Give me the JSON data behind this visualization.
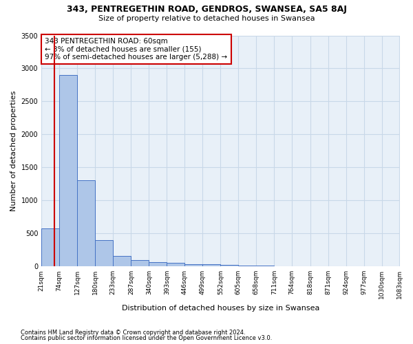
{
  "title1": "343, PENTREGETHIN ROAD, GENDROS, SWANSEA, SA5 8AJ",
  "title2": "Size of property relative to detached houses in Swansea",
  "xlabel": "Distribution of detached houses by size in Swansea",
  "ylabel": "Number of detached properties",
  "footer1": "Contains HM Land Registry data © Crown copyright and database right 2024.",
  "footer2": "Contains public sector information licensed under the Open Government Licence v3.0.",
  "annotation_line1": "343 PENTREGETHIN ROAD: 60sqm",
  "annotation_line2": "← 3% of detached houses are smaller (155)",
  "annotation_line3": "97% of semi-detached houses are larger (5,288) →",
  "bar_edges": [
    21,
    74,
    127,
    180,
    233,
    287,
    340,
    393,
    446,
    499,
    552,
    605,
    658,
    711,
    764,
    818,
    871,
    924,
    977,
    1030,
    1083
  ],
  "bar_heights": [
    575,
    2900,
    1305,
    400,
    155,
    95,
    60,
    50,
    38,
    28,
    18,
    12,
    8,
    6,
    5,
    4,
    3,
    2,
    2,
    2
  ],
  "bar_color": "#aec6e8",
  "bar_edge_color": "#4472c4",
  "property_size": 60,
  "vline_color": "#cc0000",
  "annotation_box_color": "#cc0000",
  "grid_color": "#c8d8e8",
  "background_color": "#e8f0f8",
  "ylim": [
    0,
    3500
  ],
  "yticks": [
    0,
    500,
    1000,
    1500,
    2000,
    2500,
    3000,
    3500
  ]
}
